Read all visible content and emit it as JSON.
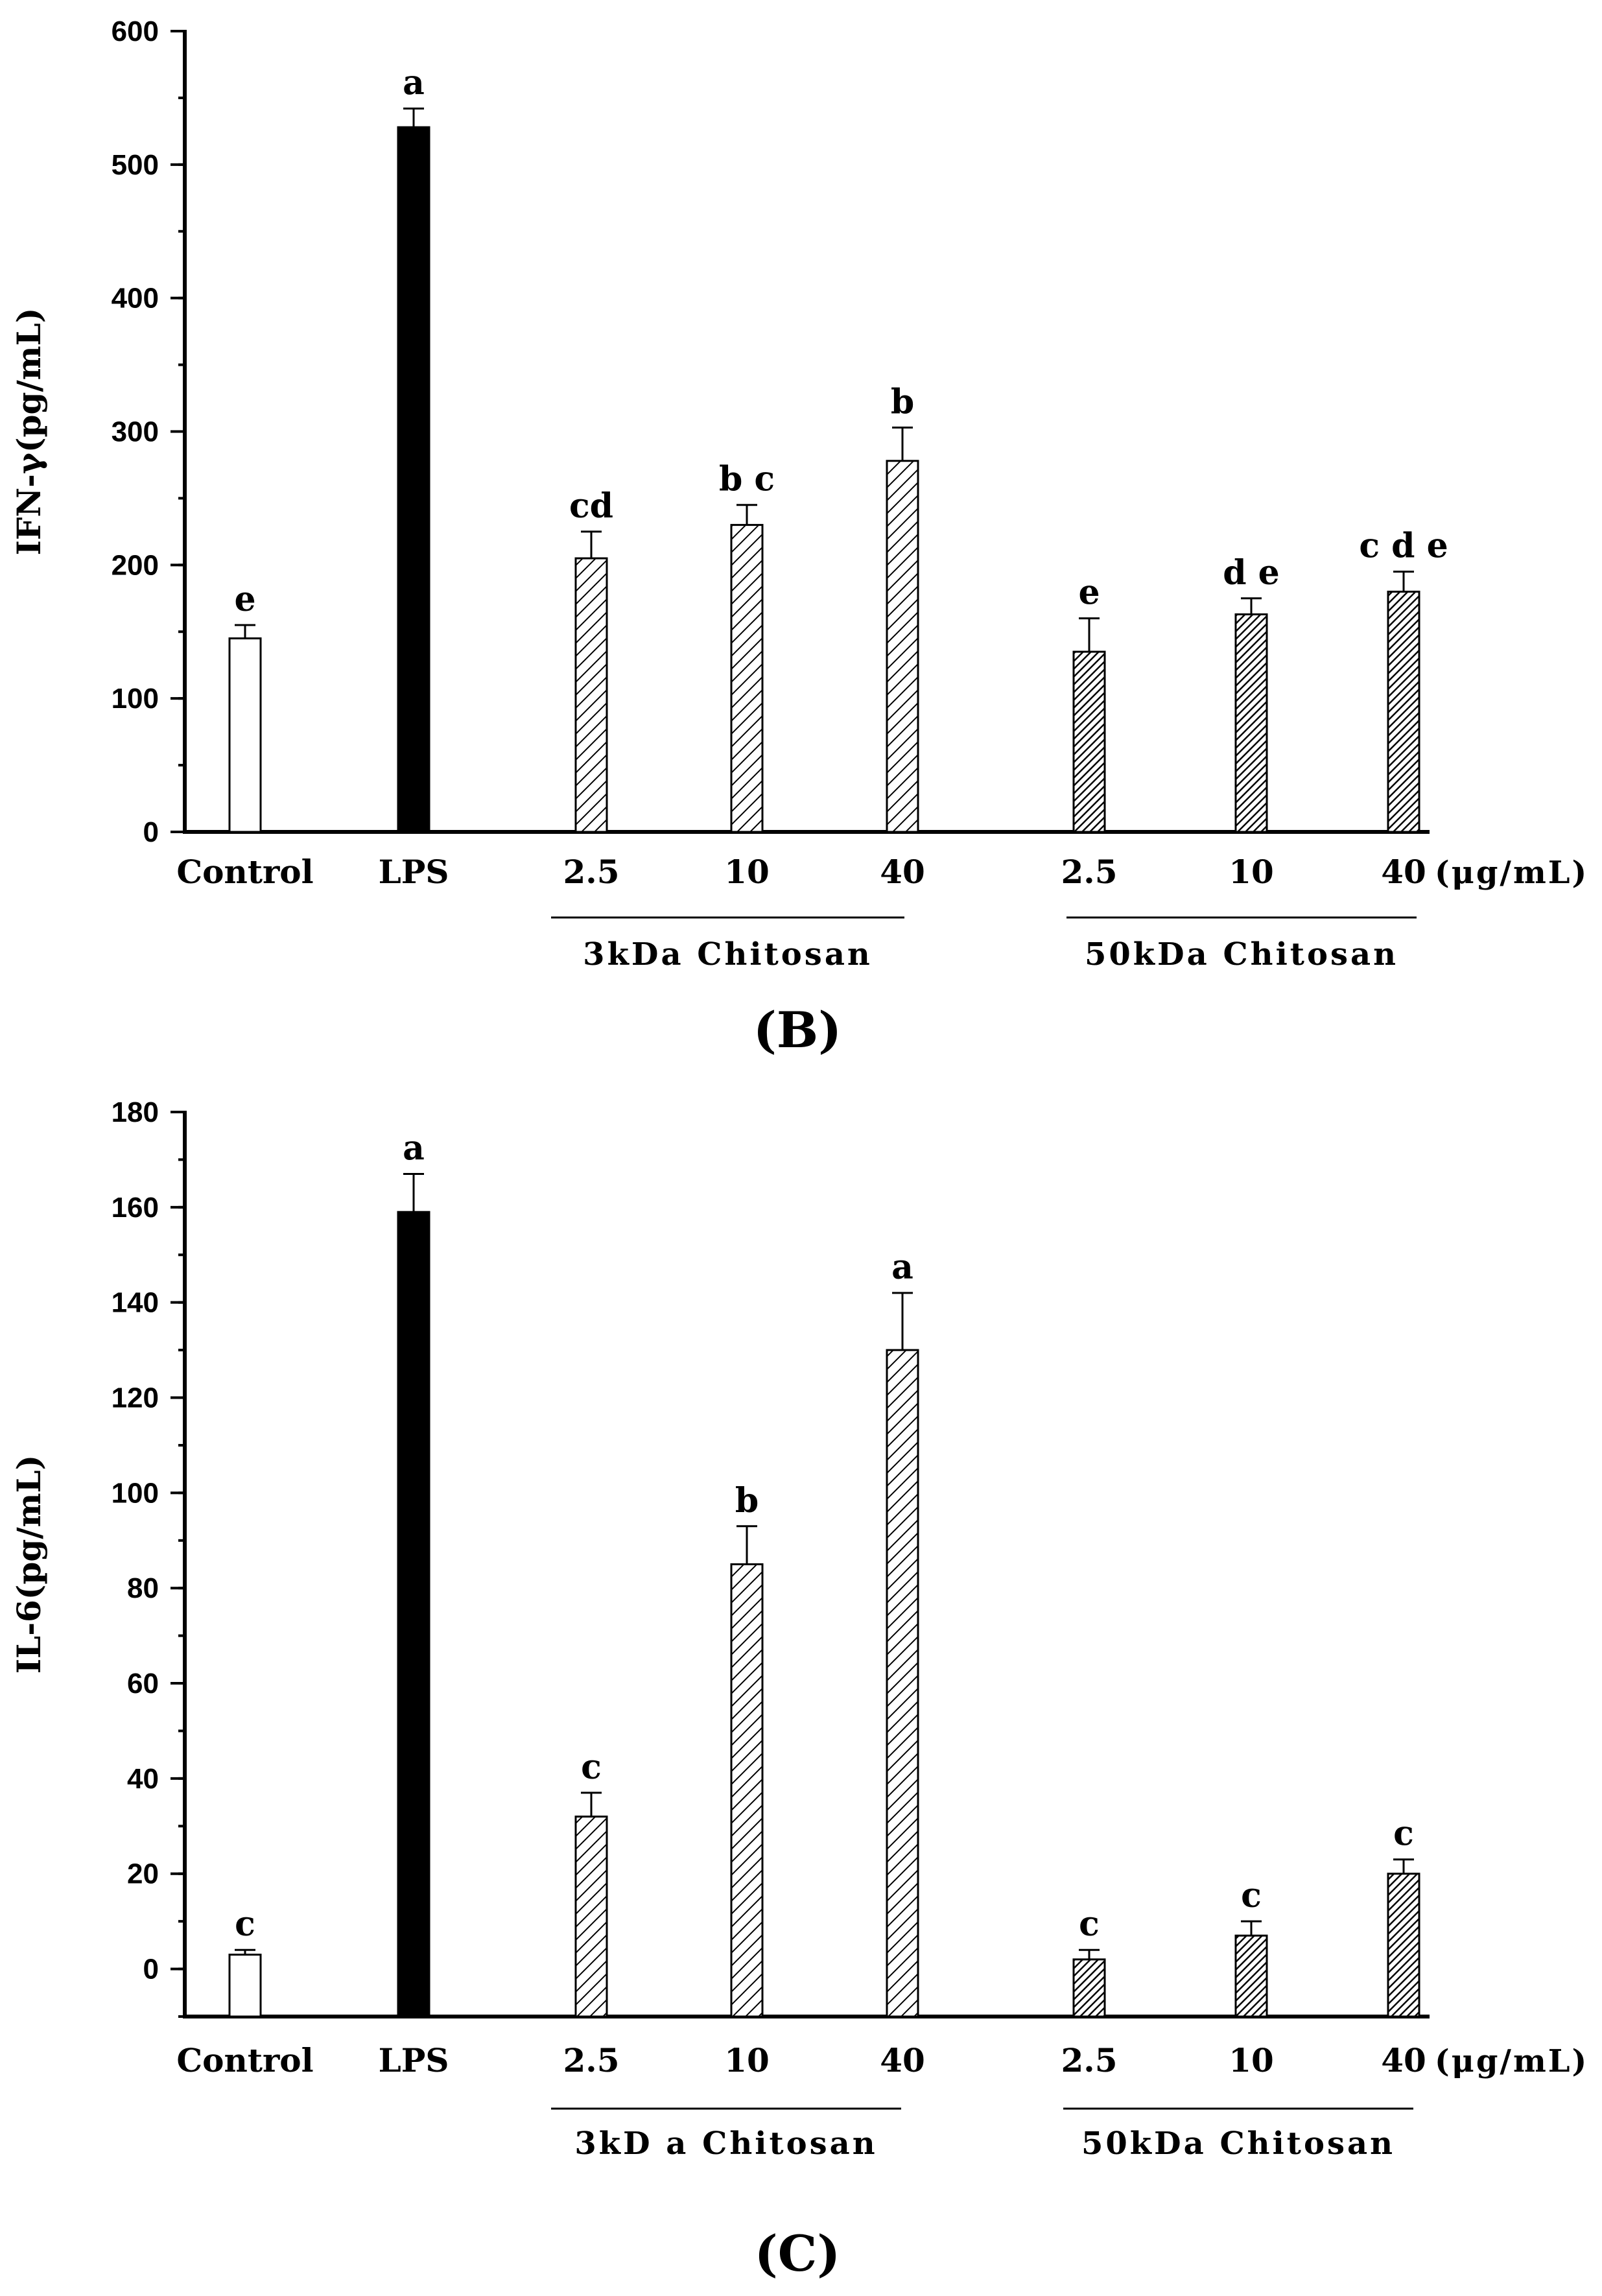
{
  "chart_data": [
    {
      "type": "bar",
      "panel_label": "(B)",
      "ylabel": "IFN-γ(pg/mL)",
      "ylim": [
        0,
        600
      ],
      "y_ticks": [
        "0",
        "100",
        "200",
        "300",
        "400",
        "500",
        "600"
      ],
      "categories": [
        "Control",
        "LPS",
        "2.5",
        "10",
        "40",
        "2.5",
        "10",
        "40"
      ],
      "unit_label": "(μg/mL)",
      "groups": [
        {
          "label": "3kDa Chitosan",
          "span": [
            2,
            4
          ]
        },
        {
          "label": "50kDa Chitosan",
          "span": [
            5,
            7
          ]
        }
      ],
      "fills": [
        "white",
        "black",
        "hatch-sparse",
        "hatch-sparse",
        "hatch-sparse",
        "hatch-dense",
        "hatch-dense",
        "hatch-dense"
      ],
      "values": [
        145,
        528,
        205,
        230,
        278,
        135,
        163,
        180
      ],
      "errors": [
        10,
        14,
        20,
        15,
        25,
        25,
        12,
        15
      ],
      "significance": [
        "e",
        "a",
        "cd",
        "b c",
        "b",
        "e",
        "d e",
        "c d e"
      ]
    },
    {
      "type": "bar",
      "panel_label": "(C)",
      "ylabel": "IL-6(pg/mL)",
      "ylim": [
        -10,
        180
      ],
      "y_ticks": [
        "0",
        "20",
        "40",
        "60",
        "80",
        "100",
        "120",
        "140",
        "160",
        "180"
      ],
      "categories": [
        "Control",
        "LPS",
        "2.5",
        "10",
        "40",
        "2.5",
        "10",
        "40"
      ],
      "unit_label": "(μg/mL)",
      "groups": [
        {
          "label": "3kD a Chitosan",
          "span": [
            2,
            4
          ]
        },
        {
          "label": "50kDa Chitosan",
          "span": [
            5,
            7
          ]
        }
      ],
      "fills": [
        "white",
        "black",
        "hatch-sparse",
        "hatch-sparse",
        "hatch-sparse",
        "hatch-dense",
        "hatch-dense",
        "hatch-dense"
      ],
      "values": [
        3,
        159,
        32,
        85,
        130,
        2,
        7,
        20
      ],
      "errors": [
        1,
        8,
        5,
        8,
        12,
        2,
        3,
        3
      ],
      "significance": [
        "c",
        "a",
        "c",
        "b",
        "a",
        "c",
        "c",
        "c"
      ]
    }
  ]
}
